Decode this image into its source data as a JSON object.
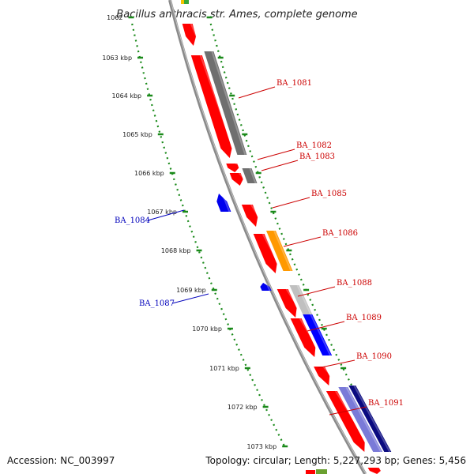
{
  "title": "Bacillus anthracis str. Ames, complete genome",
  "footer": {
    "accession": "Accession: NC_003997",
    "topology": "Topology: circular; Length: 5,227,293 bp; Genes: 5,456"
  },
  "colors": {
    "backbone": "#8a8a8a",
    "ruler": "#1a8a1a",
    "forward_label": "#cc0000",
    "reverse_label": "#0000bb"
  },
  "ticks": [
    "1062",
    "1063 kbp",
    "1064 kbp",
    "1065 kbp",
    "1066 kbp",
    "1067 kbp",
    "1068 kbp",
    "1069 kbp",
    "1070 kbp",
    "1071 kbp",
    "1072 kbp",
    "1073 kbp"
  ],
  "gene_labels": [
    {
      "name": "BA_1081",
      "strand": "forward"
    },
    {
      "name": "BA_1082",
      "strand": "forward"
    },
    {
      "name": "BA_1083",
      "strand": "forward"
    },
    {
      "name": "BA_1084",
      "strand": "reverse"
    },
    {
      "name": "BA_1085",
      "strand": "forward"
    },
    {
      "name": "BA_1086",
      "strand": "forward"
    },
    {
      "name": "BA_1087",
      "strand": "reverse"
    },
    {
      "name": "BA_1088",
      "strand": "forward"
    },
    {
      "name": "BA_1089",
      "strand": "forward"
    },
    {
      "name": "BA_1090",
      "strand": "forward"
    },
    {
      "name": "BA_1091",
      "strand": "forward"
    }
  ]
}
